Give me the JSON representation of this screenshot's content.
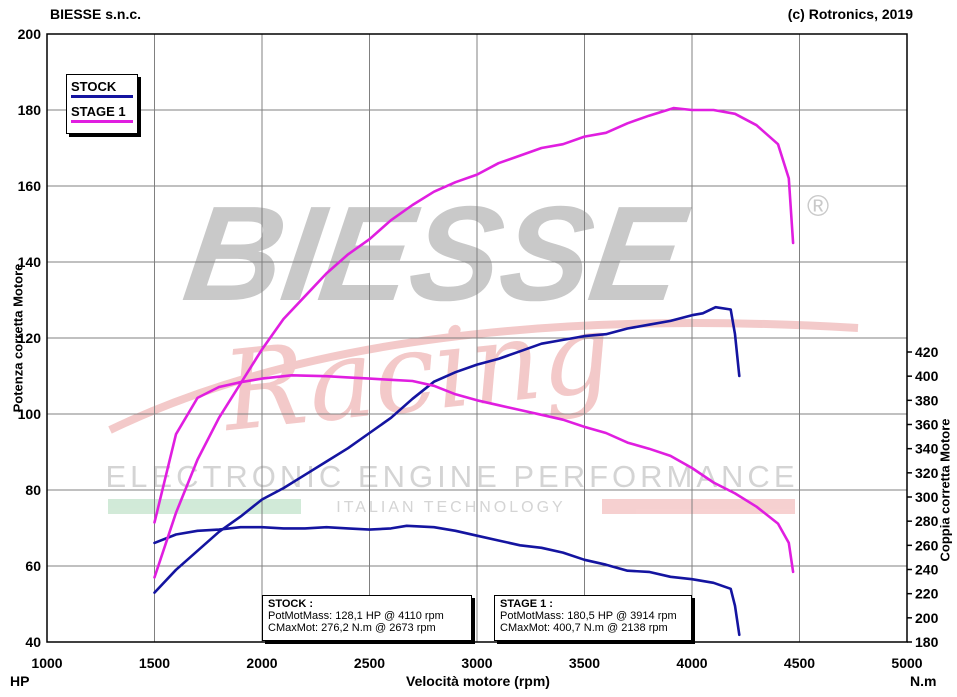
{
  "header": {
    "left": "BIESSE s.n.c.",
    "right": "(c) Rotronics, 2019"
  },
  "watermark": {
    "brand": "BIESSE",
    "registered": "®",
    "script": "Racing",
    "tagline": "ELECTRONIC ENGINE PERFORMANCE",
    "subtagline": "ITALIAN TECHNOLOGY"
  },
  "colors": {
    "stock": "#1414a0",
    "stage1": "#e01ee0",
    "grid": "#808080"
  },
  "legend": {
    "stock": "STOCK",
    "stage1": "STAGE 1"
  },
  "info": {
    "stock": {
      "title": "STOCK :",
      "line1": "PotMotMass: 128,1 HP @ 4110 rpm",
      "line2": "CMaxMot: 276,2 N.m @ 2673 rpm"
    },
    "stage1": {
      "title": "STAGE 1 :",
      "line1": "PotMotMass: 180,5 HP @ 3914 rpm",
      "line2": "CMaxMot: 400,7 N.m @ 2138 rpm"
    }
  },
  "chart_data": {
    "type": "line",
    "xlabel": "Velocità motore (rpm)",
    "ylabel_left": "Potenza corretta Motore",
    "ylabel_right": "Coppia corretta Motore",
    "unit_left": "HP",
    "unit_right": "N.m",
    "xlim": [
      1000,
      5000
    ],
    "ylim_left": [
      40,
      200
    ],
    "ylim_right": [
      180,
      420
    ],
    "x_ticks": [
      "1000",
      "1500",
      "2000",
      "2500",
      "3000",
      "3500",
      "4000",
      "4500",
      "5000"
    ],
    "y_ticks_left": [
      "40",
      "60",
      "80",
      "100",
      "120",
      "140",
      "160",
      "180",
      "200"
    ],
    "y_ticks_right": [
      "180",
      "200",
      "220",
      "240",
      "260",
      "280",
      "300",
      "320",
      "340",
      "360",
      "380",
      "400",
      "420"
    ],
    "grid": true,
    "legend_position": "top-left",
    "series": [
      {
        "name": "STOCK",
        "quantity": "power",
        "axis": "left",
        "color": "#1414a0",
        "x": [
          1500,
          1600,
          1700,
          1800,
          1900,
          2000,
          2100,
          2200,
          2300,
          2400,
          2500,
          2600,
          2700,
          2800,
          2900,
          3000,
          3100,
          3200,
          3300,
          3400,
          3500,
          3600,
          3700,
          3800,
          3900,
          4000,
          4050,
          4110,
          4180,
          4200,
          4220
        ],
        "y": [
          53,
          59,
          64,
          69,
          73,
          77.5,
          80.5,
          84,
          87.5,
          91,
          95,
          99,
          104,
          108.5,
          111,
          113,
          114.5,
          116.5,
          118.5,
          119.5,
          120.5,
          121,
          122.5,
          123.5,
          124.5,
          126,
          126.5,
          128.1,
          127.5,
          121,
          110
        ]
      },
      {
        "name": "STOCK",
        "quantity": "torque",
        "axis": "right",
        "color": "#1414a0",
        "x": [
          1500,
          1600,
          1700,
          1800,
          1900,
          2000,
          2100,
          2200,
          2300,
          2400,
          2500,
          2600,
          2673,
          2800,
          2900,
          3000,
          3100,
          3200,
          3300,
          3400,
          3500,
          3600,
          3700,
          3800,
          3900,
          4000,
          4100,
          4180,
          4200,
          4220
        ],
        "y": [
          262,
          269,
          272,
          273,
          275,
          275,
          274,
          274,
          275,
          274,
          273,
          274,
          276.2,
          275,
          272,
          268,
          264,
          260,
          258,
          254,
          248,
          244,
          239,
          238,
          234,
          232,
          229,
          224,
          210,
          186
        ]
      },
      {
        "name": "STAGE 1",
        "quantity": "power",
        "axis": "left",
        "color": "#e01ee0",
        "x": [
          1500,
          1600,
          1700,
          1800,
          1900,
          2000,
          2100,
          2200,
          2300,
          2400,
          2500,
          2600,
          2700,
          2800,
          2900,
          3000,
          3100,
          3200,
          3300,
          3400,
          3500,
          3600,
          3700,
          3800,
          3914,
          4000,
          4100,
          4200,
          4300,
          4400,
          4450,
          4470
        ],
        "y": [
          57,
          74,
          88,
          99,
          108,
          117,
          125,
          131,
          137,
          142,
          146,
          151,
          155,
          158.5,
          161,
          163,
          166,
          168,
          170,
          171,
          173,
          174,
          176.5,
          178.5,
          180.5,
          180,
          180,
          179,
          176,
          171,
          162,
          145
        ]
      },
      {
        "name": "STAGE 1",
        "quantity": "torque",
        "axis": "right",
        "color": "#e01ee0",
        "x": [
          1500,
          1600,
          1700,
          1800,
          1900,
          2000,
          2138,
          2300,
          2400,
          2500,
          2600,
          2700,
          2800,
          2900,
          3000,
          3100,
          3200,
          3300,
          3400,
          3500,
          3600,
          3700,
          3800,
          3900,
          4000,
          4100,
          4200,
          4300,
          4400,
          4450,
          4470
        ],
        "y": [
          279,
          352,
          382,
          391,
          395,
          398,
          400.7,
          400,
          399,
          398,
          397,
          396,
          392,
          385,
          380,
          376,
          372,
          368,
          364,
          358,
          353,
          345,
          340,
          334,
          324,
          312,
          303,
          292,
          278,
          262,
          238
        ]
      }
    ]
  }
}
